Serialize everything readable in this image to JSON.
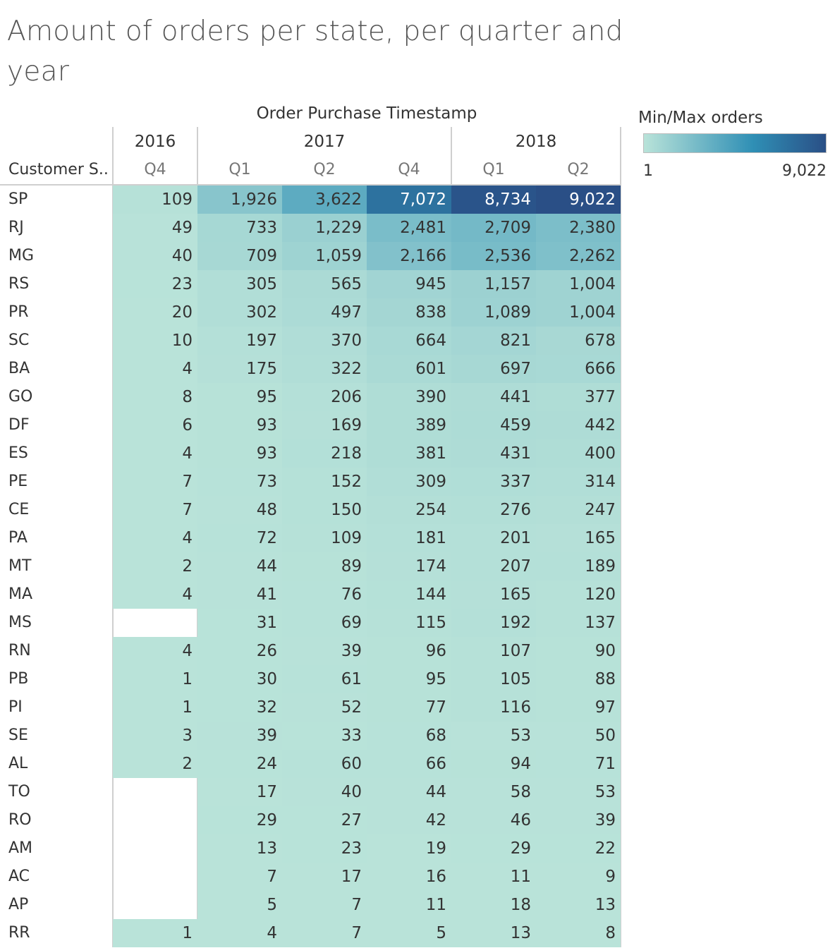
{
  "title": "Amount of orders per state, per quarter and year",
  "column_axis_title": "Order Purchase Timestamp",
  "row_header": "Customer S..",
  "legend": {
    "title": "Min/Max orders",
    "min_label": "1",
    "max_label": "9,022",
    "color_low": "#b9e3d9",
    "color_mid": "#2f8fb5",
    "color_high": "#2a4f86"
  },
  "chart_data": {
    "type": "heatmap",
    "title": "Amount of orders per state, per quarter and year",
    "column_axis_title": "Order Purchase Timestamp",
    "row_axis_title": "Customer S..",
    "years": [
      {
        "year": "2016",
        "quarters": [
          "Q4"
        ]
      },
      {
        "year": "2017",
        "quarters": [
          "Q1",
          "Q2",
          "Q4"
        ]
      },
      {
        "year": "2018",
        "quarters": [
          "Q1",
          "Q2"
        ]
      }
    ],
    "columns": [
      "2016 Q4",
      "2017 Q1",
      "2017 Q2",
      "2017 Q4",
      "2018 Q1",
      "2018 Q2"
    ],
    "color_range": [
      1,
      9022
    ],
    "rows": [
      {
        "state": "SP",
        "values": [
          109,
          1926,
          3622,
          7072,
          8734,
          9022
        ]
      },
      {
        "state": "RJ",
        "values": [
          49,
          733,
          1229,
          2481,
          2709,
          2380
        ]
      },
      {
        "state": "MG",
        "values": [
          40,
          709,
          1059,
          2166,
          2536,
          2262
        ]
      },
      {
        "state": "RS",
        "values": [
          23,
          305,
          565,
          945,
          1157,
          1004
        ]
      },
      {
        "state": "PR",
        "values": [
          20,
          302,
          497,
          838,
          1089,
          1004
        ]
      },
      {
        "state": "SC",
        "values": [
          10,
          197,
          370,
          664,
          821,
          678
        ]
      },
      {
        "state": "BA",
        "values": [
          4,
          175,
          322,
          601,
          697,
          666
        ]
      },
      {
        "state": "GO",
        "values": [
          8,
          95,
          206,
          390,
          441,
          377
        ]
      },
      {
        "state": "DF",
        "values": [
          6,
          93,
          169,
          389,
          459,
          442
        ]
      },
      {
        "state": "ES",
        "values": [
          4,
          93,
          218,
          381,
          431,
          400
        ]
      },
      {
        "state": "PE",
        "values": [
          7,
          73,
          152,
          309,
          337,
          314
        ]
      },
      {
        "state": "CE",
        "values": [
          7,
          48,
          150,
          254,
          276,
          247
        ]
      },
      {
        "state": "PA",
        "values": [
          4,
          72,
          109,
          181,
          201,
          165
        ]
      },
      {
        "state": "MT",
        "values": [
          2,
          44,
          89,
          174,
          207,
          189
        ]
      },
      {
        "state": "MA",
        "values": [
          4,
          41,
          76,
          144,
          165,
          120
        ]
      },
      {
        "state": "MS",
        "values": [
          null,
          31,
          69,
          115,
          192,
          137
        ]
      },
      {
        "state": "RN",
        "values": [
          4,
          26,
          39,
          96,
          107,
          90
        ]
      },
      {
        "state": "PB",
        "values": [
          1,
          30,
          61,
          95,
          105,
          88
        ]
      },
      {
        "state": "PI",
        "values": [
          1,
          32,
          52,
          77,
          116,
          97
        ]
      },
      {
        "state": "SE",
        "values": [
          3,
          39,
          33,
          68,
          53,
          50
        ]
      },
      {
        "state": "AL",
        "values": [
          2,
          24,
          60,
          66,
          94,
          71
        ]
      },
      {
        "state": "TO",
        "values": [
          null,
          17,
          40,
          44,
          58,
          53
        ]
      },
      {
        "state": "RO",
        "values": [
          null,
          29,
          27,
          42,
          46,
          39
        ]
      },
      {
        "state": "AM",
        "values": [
          null,
          13,
          23,
          19,
          29,
          22
        ]
      },
      {
        "state": "AC",
        "values": [
          null,
          7,
          17,
          16,
          11,
          9
        ]
      },
      {
        "state": "AP",
        "values": [
          null,
          5,
          7,
          11,
          18,
          13
        ]
      },
      {
        "state": "RR",
        "values": [
          1,
          4,
          7,
          5,
          13,
          8
        ]
      }
    ]
  }
}
